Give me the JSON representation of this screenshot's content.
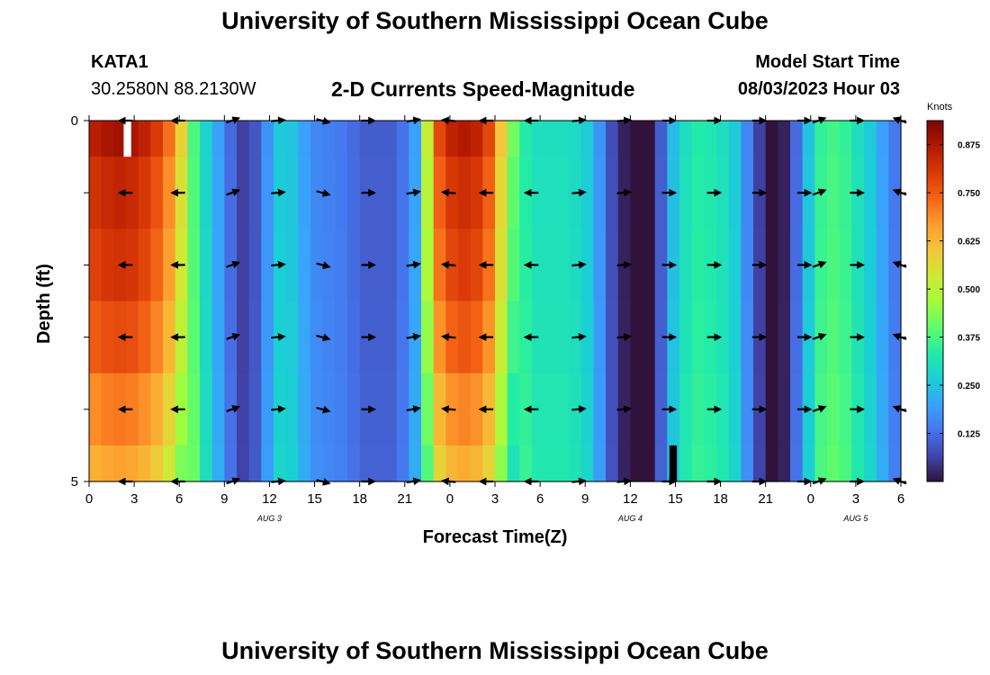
{
  "page": {
    "title": "University of Southern Mississippi Ocean Cube",
    "footer_title": "University of Southern Mississippi Ocean Cube",
    "station": "KATA1",
    "coords": "30.2580N  88.2130W",
    "subtitle": "2-D Currents Speed-Magnitude",
    "model_start_label": "Model Start Time",
    "model_start_value": "08/03/2023 Hour 03"
  },
  "chart_data": {
    "type": "heatmap",
    "title": "2-D Currents Speed-Magnitude",
    "xlabel": "Forecast Time(Z)",
    "ylabel": "Depth (ft)",
    "x_range_hours": [
      0,
      54
    ],
    "y_range": [
      0,
      5
    ],
    "x_tick_labels": [
      "0",
      "3",
      "6",
      "9",
      "12",
      "15",
      "18",
      "21",
      "0",
      "3",
      "6",
      "9",
      "12",
      "15",
      "18",
      "21",
      "0",
      "3",
      "6"
    ],
    "y_tick_labels": [
      "0",
      "5"
    ],
    "date_labels": [
      {
        "text": "AUG 3",
        "hour": 12
      },
      {
        "text": "AUG 4",
        "hour": 36
      },
      {
        "text": "AUG 5",
        "hour": 51
      }
    ],
    "colorbar": {
      "unit": "Knots",
      "range": [
        0,
        0.9375
      ],
      "tick_labels": [
        "0.875",
        "0.750",
        "0.625",
        "0.500",
        "0.375",
        "0.250",
        "0.125"
      ],
      "tick_values": [
        0.875,
        0.75,
        0.625,
        0.5,
        0.375,
        0.25,
        0.125
      ]
    },
    "depth_layers": 5,
    "surface_speed_knots": [
      0.86,
      0.88,
      0.89,
      0.88,
      0.85,
      0.8,
      0.72,
      0.58,
      0.38,
      0.28,
      0.2,
      0.12,
      0.06,
      0.09,
      0.18,
      0.26,
      0.25,
      0.2,
      0.16,
      0.15,
      0.14,
      0.12,
      0.1,
      0.1,
      0.1,
      0.13,
      0.2,
      0.52,
      0.78,
      0.85,
      0.87,
      0.85,
      0.78,
      0.6,
      0.42,
      0.33,
      0.3,
      0.3,
      0.3,
      0.29,
      0.26,
      0.18,
      0.08,
      0.02,
      0.0,
      0.0,
      0.1,
      0.24,
      0.3,
      0.33,
      0.32,
      0.3,
      0.26,
      0.16,
      0.06,
      0.0,
      0.02,
      0.12,
      0.25,
      0.35,
      0.37,
      0.35,
      0.3,
      0.26,
      0.2,
      0.14
    ],
    "depth_factor": [
      1.0,
      0.95,
      0.92,
      0.87,
      0.8,
      0.74
    ],
    "arrows": {
      "hours": [
        2.5,
        6,
        9.5,
        12.5,
        15.5,
        18.5,
        21.5,
        24,
        26.5,
        29.5,
        32.5,
        35.5,
        38.5,
        41.5,
        44.5,
        47.5,
        48.5,
        51,
        54
      ],
      "layer_centers": [
        0,
        1,
        2,
        3,
        4,
        5
      ],
      "directions_deg": [
        180,
        180,
        20,
        5,
        -15,
        0,
        10,
        175,
        180,
        180,
        5,
        5,
        0,
        0,
        0,
        0,
        20,
        0,
        160
      ]
    },
    "missing_cells": [
      {
        "hour_start": 2.3,
        "hour_end": 2.8,
        "depth_start": 0,
        "depth_end": 0.5,
        "color": "#ffffff"
      },
      {
        "hour_start": 38.6,
        "hour_end": 39.1,
        "depth_start": 4.5,
        "depth_end": 5,
        "color": "#000000"
      }
    ],
    "colormap": [
      "#30123b",
      "#4145ab",
      "#4675ed",
      "#39a2fc",
      "#1bcfd4",
      "#24eca6",
      "#61fc6c",
      "#a4fc3b",
      "#d1e834",
      "#f3c63a",
      "#fe9b2d",
      "#f36315",
      "#d93806",
      "#b11901",
      "#7a0402"
    ]
  }
}
